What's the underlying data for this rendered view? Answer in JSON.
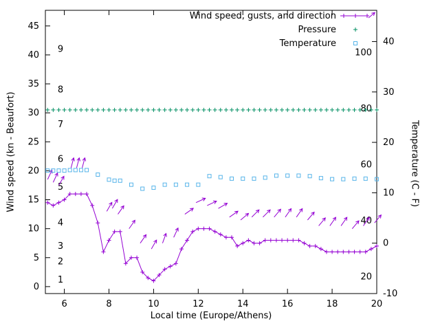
{
  "colors": {
    "background": "#ffffff",
    "axis": "#000000",
    "wind": "#9400d3",
    "pressure": "#008f62",
    "temperature": "#56b4e9"
  },
  "chart_data": {
    "type": "line",
    "title": "",
    "x_axis": {
      "label": "Local time (Europe/Athens)",
      "range": [
        5.15,
        20
      ],
      "ticks": [
        6,
        8,
        10,
        12,
        14,
        16,
        18,
        20
      ]
    },
    "y_left_axis": {
      "label": "Wind speed (kn - Beaufort)",
      "range": [
        -1.2,
        47.7
      ],
      "ticks": [
        0,
        5,
        10,
        15,
        20,
        25,
        30,
        35,
        40,
        45
      ]
    },
    "y_right_axis": {
      "label": "Temperature (C - F)",
      "range": [
        -10,
        46.2
      ],
      "ticks": [
        -10,
        0,
        10,
        20,
        30,
        40
      ]
    },
    "inner_beaufort_scale": [
      {
        "label": "1",
        "kn": 1.2
      },
      {
        "label": "2",
        "kn": 4.3
      },
      {
        "label": "3",
        "kn": 7
      },
      {
        "label": "4",
        "kn": 11
      },
      {
        "label": "5",
        "kn": 17.2
      },
      {
        "label": "6",
        "kn": 22
      },
      {
        "label": "7",
        "kn": 28
      },
      {
        "label": "8",
        "kn": 34
      },
      {
        "label": "9",
        "kn": 41
      }
    ],
    "inner_fahrenheit_scale": [
      {
        "label": "20",
        "f": 20
      },
      {
        "label": "40",
        "f": 40
      },
      {
        "label": "60",
        "f": 60
      },
      {
        "label": "80",
        "f": 80
      },
      {
        "label": "100",
        "f": 100
      }
    ],
    "legend": [
      {
        "series": "wind-speed",
        "label": "Wind speed, gusts, and direction"
      },
      {
        "series": "pressure",
        "label": "Pressure"
      },
      {
        "series": "temperature",
        "label": "Temperature"
      }
    ],
    "series": [
      {
        "name": "wind-speed",
        "axis": "left",
        "color_key": "wind",
        "marker": "plus",
        "line": true,
        "points": [
          [
            5.25,
            14.5
          ],
          [
            5.5,
            14
          ],
          [
            5.75,
            14.5
          ],
          [
            6,
            15
          ],
          [
            6.25,
            16
          ],
          [
            6.5,
            16
          ],
          [
            6.75,
            16
          ],
          [
            7,
            16
          ],
          [
            7.25,
            14
          ],
          [
            7.5,
            11
          ],
          [
            7.75,
            6
          ],
          [
            8,
            8
          ],
          [
            8.25,
            9.5
          ],
          [
            8.5,
            9.5
          ],
          [
            8.75,
            4
          ],
          [
            9,
            5
          ],
          [
            9.25,
            5
          ],
          [
            9.5,
            2.5
          ],
          [
            9.75,
            1.5
          ],
          [
            10,
            1
          ],
          [
            10.25,
            2
          ],
          [
            10.5,
            3
          ],
          [
            10.75,
            3.5
          ],
          [
            11,
            4
          ],
          [
            11.25,
            6.5
          ],
          [
            11.5,
            8
          ],
          [
            11.75,
            9.5
          ],
          [
            12,
            10
          ],
          [
            12.25,
            10
          ],
          [
            12.5,
            10
          ],
          [
            12.75,
            9.5
          ],
          [
            13,
            9
          ],
          [
            13.25,
            8.5
          ],
          [
            13.5,
            8.5
          ],
          [
            13.75,
            7
          ],
          [
            14,
            7.5
          ],
          [
            14.25,
            8
          ],
          [
            14.5,
            7.5
          ],
          [
            14.75,
            7.5
          ],
          [
            15,
            8
          ],
          [
            15.25,
            8
          ],
          [
            15.5,
            8
          ],
          [
            15.75,
            8
          ],
          [
            16,
            8
          ],
          [
            16.25,
            8
          ],
          [
            16.5,
            8
          ],
          [
            16.75,
            7.5
          ],
          [
            17,
            7
          ],
          [
            17.25,
            7
          ],
          [
            17.5,
            6.5
          ],
          [
            17.75,
            6
          ],
          [
            18,
            6
          ],
          [
            18.25,
            6
          ],
          [
            18.5,
            6
          ],
          [
            18.75,
            6
          ],
          [
            19,
            6
          ],
          [
            19.25,
            6
          ],
          [
            19.5,
            6
          ],
          [
            19.75,
            6.5
          ],
          [
            20,
            7
          ]
        ]
      },
      {
        "name": "wind-gusts",
        "axis": "left",
        "color_key": "wind",
        "type": "vectors",
        "arrows": [
          {
            "x": 5.25,
            "kn": 18.5,
            "angle": 65
          },
          {
            "x": 5.5,
            "kn": 18,
            "angle": 65
          },
          {
            "x": 5.75,
            "kn": 17.5,
            "angle": 60
          },
          {
            "x": 6.3,
            "kn": 20.5,
            "angle": 75
          },
          {
            "x": 6.55,
            "kn": 20.5,
            "angle": 75
          },
          {
            "x": 6.8,
            "kn": 20.5,
            "angle": 75
          },
          {
            "x": 7.9,
            "kn": 13,
            "angle": 60
          },
          {
            "x": 8.15,
            "kn": 13.5,
            "angle": 60
          },
          {
            "x": 8.4,
            "kn": 12.5,
            "angle": 55
          },
          {
            "x": 8.9,
            "kn": 10,
            "angle": 55
          },
          {
            "x": 9.4,
            "kn": 7.5,
            "angle": 55
          },
          {
            "x": 9.9,
            "kn": 6.5,
            "angle": 60
          },
          {
            "x": 10.4,
            "kn": 7.5,
            "angle": 70
          },
          {
            "x": 10.9,
            "kn": 8.5,
            "angle": 65
          },
          {
            "x": 11.4,
            "kn": 12.5,
            "angle": 35
          },
          {
            "x": 11.9,
            "kn": 14.5,
            "angle": 25
          },
          {
            "x": 12.4,
            "kn": 14,
            "angle": 25
          },
          {
            "x": 12.9,
            "kn": 13.5,
            "angle": 30
          },
          {
            "x": 13.4,
            "kn": 12,
            "angle": 35
          },
          {
            "x": 13.9,
            "kn": 11.5,
            "angle": 40
          },
          {
            "x": 14.4,
            "kn": 12,
            "angle": 45
          },
          {
            "x": 14.9,
            "kn": 12,
            "angle": 45
          },
          {
            "x": 15.4,
            "kn": 12,
            "angle": 50
          },
          {
            "x": 15.9,
            "kn": 12,
            "angle": 55
          },
          {
            "x": 16.4,
            "kn": 12,
            "angle": 55
          },
          {
            "x": 16.9,
            "kn": 11.5,
            "angle": 50
          },
          {
            "x": 17.4,
            "kn": 10.5,
            "angle": 50
          },
          {
            "x": 17.9,
            "kn": 10.5,
            "angle": 55
          },
          {
            "x": 18.4,
            "kn": 10.5,
            "angle": 55
          },
          {
            "x": 18.9,
            "kn": 10,
            "angle": 50
          },
          {
            "x": 19.4,
            "kn": 10.5,
            "angle": 55
          },
          {
            "x": 19.9,
            "kn": 11,
            "angle": 50
          }
        ]
      },
      {
        "name": "pressure",
        "axis": "left",
        "color_key": "pressure",
        "marker": "plus",
        "line": false,
        "flat": {
          "x_start": 5.25,
          "x_end": 20,
          "x_step": 0.25,
          "value": 30.5
        }
      },
      {
        "name": "temperature",
        "axis": "right",
        "color_key": "temperature",
        "marker": "square",
        "line": false,
        "points": [
          [
            5.25,
            14.4
          ],
          [
            5.5,
            14.4
          ],
          [
            5.75,
            14.4
          ],
          [
            6,
            14.4
          ],
          [
            6.25,
            14.5
          ],
          [
            6.5,
            14.5
          ],
          [
            6.75,
            14.5
          ],
          [
            7,
            14.5
          ],
          [
            7.5,
            13.6
          ],
          [
            8,
            12.6
          ],
          [
            8.25,
            12.4
          ],
          [
            8.5,
            12.4
          ],
          [
            9,
            11.6
          ],
          [
            9.5,
            10.8
          ],
          [
            10,
            11
          ],
          [
            10.5,
            11.6
          ],
          [
            11,
            11.6
          ],
          [
            11.5,
            11.6
          ],
          [
            12,
            11.6
          ],
          [
            12.5,
            13.3
          ],
          [
            13,
            13.1
          ],
          [
            13.5,
            12.8
          ],
          [
            14,
            12.8
          ],
          [
            14.5,
            12.8
          ],
          [
            15,
            13
          ],
          [
            15.5,
            13.4
          ],
          [
            16,
            13.4
          ],
          [
            16.5,
            13.4
          ],
          [
            17,
            13.3
          ],
          [
            17.5,
            12.9
          ],
          [
            18,
            12.7
          ],
          [
            18.5,
            12.7
          ],
          [
            19,
            12.8
          ],
          [
            19.5,
            12.8
          ],
          [
            20,
            12.7
          ]
        ]
      }
    ]
  }
}
